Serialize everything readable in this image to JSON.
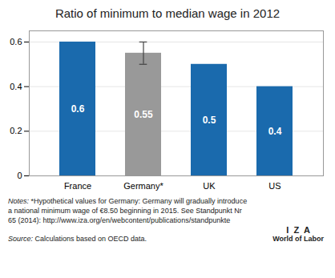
{
  "chart_data": {
    "type": "bar",
    "title": "Ratio of minimum to median wage in 2012",
    "categories": [
      "France",
      "Germany*",
      "UK",
      "US"
    ],
    "values": [
      0.6,
      0.55,
      0.5,
      0.4
    ],
    "colors": [
      "#1a6aad",
      "#999999",
      "#1a6aad",
      "#1a6aad"
    ],
    "error_bars": [
      null,
      0.05,
      null,
      null
    ],
    "data_labels": true,
    "ylim": [
      0,
      0.65
    ],
    "yticks": [
      0,
      0.2,
      0.4,
      0.6
    ],
    "grid": true,
    "annotations": [
      "Notes: *Hypothetical values for Germany: Germany will gradually introduce",
      "a national minimum wage of €8.50 beginning in 2015. See Standpunkt Nr",
      "65 (2014): http://www.iza.org/en/webcontent/publications/standpunkte",
      "Source: Calculations based on OECD data.",
      "I  Z  A",
      "World of Labor"
    ]
  }
}
